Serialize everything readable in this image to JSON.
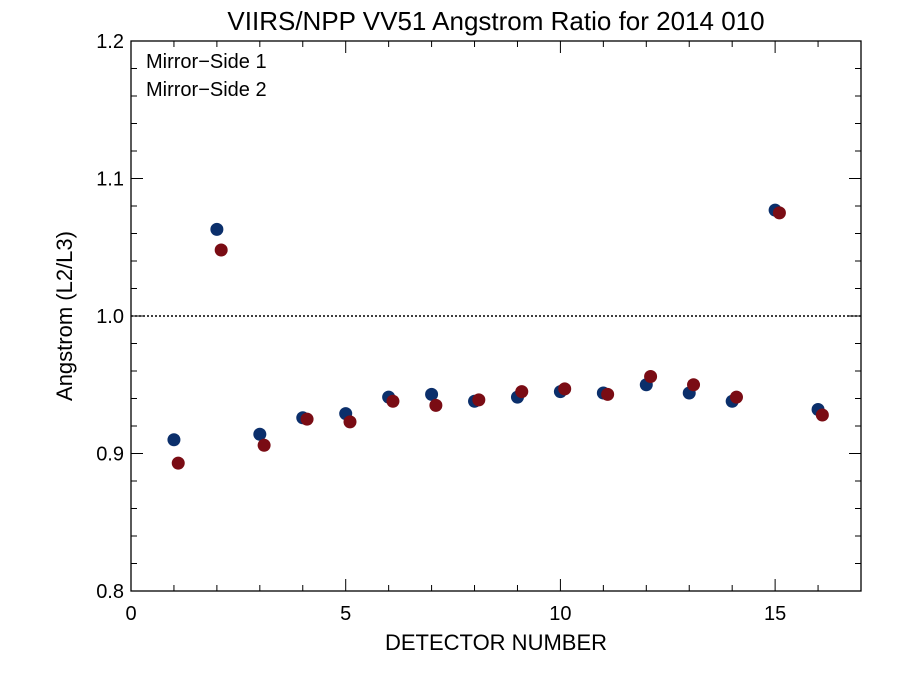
{
  "chart_data": {
    "type": "scatter",
    "title": "VIIRS/NPP VV51 Angstrom Ratio for 2014 010",
    "xlabel": "DETECTOR NUMBER",
    "ylabel": "Angstrom (L2/L3)",
    "xlim": [
      0,
      17
    ],
    "ylim": [
      0.8,
      1.2
    ],
    "xticks": [
      0,
      5,
      10,
      15
    ],
    "xtick_labels": [
      "0",
      "5",
      "10",
      "15"
    ],
    "yticks": [
      0.8,
      0.9,
      1.0,
      1.1,
      1.2
    ],
    "ytick_labels": [
      "0.8",
      "0.9",
      "1.0",
      "1.1",
      "1.2"
    ],
    "reference_line": {
      "y": 1.0,
      "style": "dotted"
    },
    "legend_position": "top-left",
    "series": [
      {
        "name": "Mirror−Side 1",
        "color": "#0b2f6b",
        "x": [
          1,
          2,
          3,
          4,
          5,
          6,
          7,
          8,
          9,
          10,
          11,
          12,
          13,
          14,
          15,
          16
        ],
        "y": [
          0.91,
          1.063,
          0.914,
          0.926,
          0.929,
          0.941,
          0.943,
          0.938,
          0.941,
          0.945,
          0.944,
          0.95,
          0.944,
          0.938,
          1.077,
          0.932
        ]
      },
      {
        "name": "Mirror−Side 2",
        "color": "#7a0c14",
        "x": [
          1.1,
          2.1,
          3.1,
          4.1,
          5.1,
          6.1,
          7.1,
          8.1,
          9.1,
          10.1,
          11.1,
          12.1,
          13.1,
          14.1,
          15.1,
          16.1
        ],
        "y": [
          0.893,
          1.048,
          0.906,
          0.925,
          0.923,
          0.938,
          0.935,
          0.939,
          0.945,
          0.947,
          0.943,
          0.956,
          0.95,
          0.941,
          1.075,
          0.928
        ]
      }
    ]
  }
}
